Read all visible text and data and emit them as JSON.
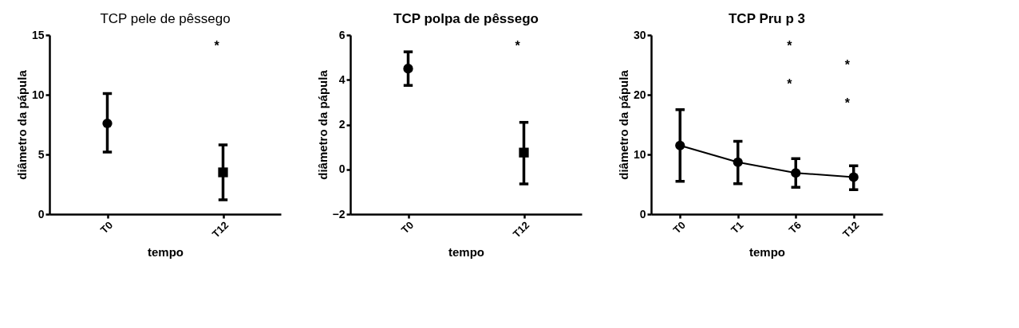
{
  "chart_data": [
    {
      "type": "scatter",
      "title": "TCP pele de pêssego",
      "xlabel": "tempo",
      "ylabel": "diâmetro da pápula",
      "categories": [
        "T0",
        "T12"
      ],
      "ylim": [
        0,
        15
      ],
      "yticks": [
        0,
        5,
        10,
        15
      ],
      "grid": false,
      "legend": false,
      "series": [
        {
          "color": "#000000",
          "marker": "circle",
          "values": [
            7.6,
            null
          ],
          "errors": [
            [
              5.2,
              10.1
            ],
            null
          ]
        },
        {
          "color": "#000000",
          "marker": "square",
          "values": [
            null,
            3.5
          ],
          "errors": [
            null,
            [
              1.2,
              5.8
            ]
          ]
        }
      ],
      "annotations": [
        "*"
      ]
    },
    {
      "type": "scatter",
      "title": "TCP polpa de pêssego",
      "xlabel": "tempo",
      "ylabel": "diâmetro da pápula",
      "categories": [
        "T0",
        "T12"
      ],
      "ylim": [
        -2,
        6
      ],
      "yticks": [
        -2,
        0,
        2,
        4,
        6
      ],
      "grid": false,
      "legend": false,
      "series": [
        {
          "color": "#000000",
          "marker": "circle",
          "values": [
            4.5,
            null
          ],
          "errors": [
            [
              3.75,
              5.25
            ],
            null
          ]
        },
        {
          "color": "#000000",
          "marker": "square",
          "values": [
            null,
            0.75
          ],
          "errors": [
            null,
            [
              -0.65,
              2.1
            ]
          ]
        }
      ],
      "annotations": [
        "*"
      ]
    },
    {
      "type": "line",
      "title": "TCP Pru p 3",
      "xlabel": "tempo",
      "ylabel": "diâmetro da pápula",
      "categories": [
        "T0",
        "T1",
        "T6",
        "T12"
      ],
      "ylim": [
        0,
        30
      ],
      "yticks": [
        0,
        10,
        20,
        30
      ],
      "grid": false,
      "legend": false,
      "marker": "circle",
      "series": [
        {
          "color": "#000000",
          "values": [
            11.5,
            8.7,
            6.9,
            6.2
          ],
          "errors": [
            [
              5.5,
              17.5
            ],
            [
              5.1,
              12.2
            ],
            [
              4.5,
              9.3
            ],
            [
              4.1,
              8.1
            ]
          ]
        }
      ],
      "annotations": [
        "*",
        "*",
        "*",
        "*"
      ]
    }
  ]
}
